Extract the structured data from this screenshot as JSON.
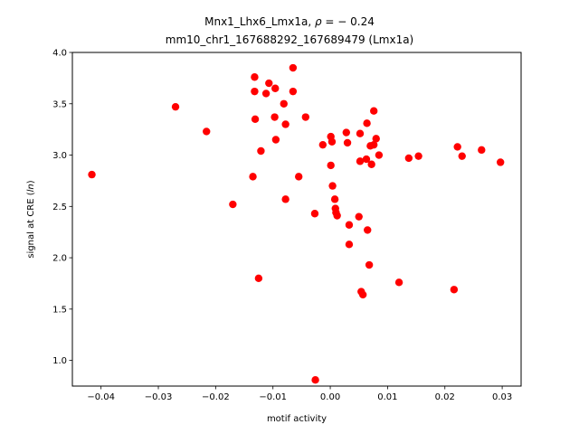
{
  "chart_data": {
    "type": "scatter",
    "title_line1_prefix": "Mnx1_Lhx6_Lmx1a, ",
    "title_line1_rho": "ρ",
    "title_line1_suffix": " = − 0.24",
    "title_line2": "mm10_chr1_167688292_167689479 (Lmx1a)",
    "xlabel": "motif activity",
    "ylabel_prefix": "signal at CRE (",
    "ylabel_italic": "ln",
    "ylabel_suffix": ")",
    "xlim": [
      -0.045,
      0.0333
    ],
    "ylim": [
      0.75,
      4.0
    ],
    "x_ticks": [
      -0.04,
      -0.03,
      -0.02,
      -0.01,
      0.0,
      0.01,
      0.02,
      0.03
    ],
    "x_tick_labels": [
      "−0.04",
      "−0.03",
      "−0.02",
      "−0.01",
      "0.00",
      "0.01",
      "0.02",
      "0.03"
    ],
    "y_ticks": [
      1.0,
      1.5,
      2.0,
      2.5,
      3.0,
      3.5,
      4.0
    ],
    "y_tick_labels": [
      "1.0",
      "1.5",
      "2.0",
      "2.5",
      "3.0",
      "3.5",
      "4.0"
    ],
    "marker_color": "#ff0000",
    "grid": false,
    "points": [
      {
        "x": -0.0416,
        "y": 2.81
      },
      {
        "x": -0.027,
        "y": 3.47
      },
      {
        "x": -0.0216,
        "y": 3.23
      },
      {
        "x": -0.017,
        "y": 2.52
      },
      {
        "x": -0.0135,
        "y": 2.79
      },
      {
        "x": -0.0132,
        "y": 3.76
      },
      {
        "x": -0.0132,
        "y": 3.62
      },
      {
        "x": -0.0131,
        "y": 3.35
      },
      {
        "x": -0.0125,
        "y": 1.8
      },
      {
        "x": -0.0121,
        "y": 3.04
      },
      {
        "x": -0.0112,
        "y": 3.6
      },
      {
        "x": -0.0107,
        "y": 3.7
      },
      {
        "x": -0.0096,
        "y": 3.65
      },
      {
        "x": -0.0097,
        "y": 3.37
      },
      {
        "x": -0.0095,
        "y": 3.15
      },
      {
        "x": -0.0081,
        "y": 3.5
      },
      {
        "x": -0.0078,
        "y": 3.3
      },
      {
        "x": -0.0078,
        "y": 2.57
      },
      {
        "x": -0.0065,
        "y": 3.85
      },
      {
        "x": -0.0065,
        "y": 3.62
      },
      {
        "x": -0.0055,
        "y": 2.79
      },
      {
        "x": -0.0043,
        "y": 3.37
      },
      {
        "x": -0.0027,
        "y": 2.43
      },
      {
        "x": -0.0026,
        "y": 0.81
      },
      {
        "x": -0.0013,
        "y": 3.1
      },
      {
        "x": 0.0001,
        "y": 3.18
      },
      {
        "x": 0.0001,
        "y": 2.9
      },
      {
        "x": 0.0003,
        "y": 3.13
      },
      {
        "x": 0.0004,
        "y": 2.7
      },
      {
        "x": 0.0008,
        "y": 2.57
      },
      {
        "x": 0.0009,
        "y": 2.48
      },
      {
        "x": 0.001,
        "y": 2.44
      },
      {
        "x": 0.0012,
        "y": 2.41
      },
      {
        "x": 0.0028,
        "y": 3.22
      },
      {
        "x": 0.003,
        "y": 3.12
      },
      {
        "x": 0.0033,
        "y": 2.32
      },
      {
        "x": 0.0033,
        "y": 2.13
      },
      {
        "x": 0.005,
        "y": 2.4
      },
      {
        "x": 0.0052,
        "y": 3.21
      },
      {
        "x": 0.0052,
        "y": 2.94
      },
      {
        "x": 0.0054,
        "y": 1.67
      },
      {
        "x": 0.0057,
        "y": 1.64
      },
      {
        "x": 0.0063,
        "y": 2.96
      },
      {
        "x": 0.0064,
        "y": 3.31
      },
      {
        "x": 0.0065,
        "y": 2.27
      },
      {
        "x": 0.0068,
        "y": 1.93
      },
      {
        "x": 0.007,
        "y": 3.09
      },
      {
        "x": 0.0072,
        "y": 2.91
      },
      {
        "x": 0.0076,
        "y": 3.43
      },
      {
        "x": 0.0076,
        "y": 3.1
      },
      {
        "x": 0.008,
        "y": 3.16
      },
      {
        "x": 0.0085,
        "y": 3.0
      },
      {
        "x": 0.012,
        "y": 1.76
      },
      {
        "x": 0.0137,
        "y": 2.97
      },
      {
        "x": 0.0154,
        "y": 2.99
      },
      {
        "x": 0.0216,
        "y": 1.69
      },
      {
        "x": 0.0222,
        "y": 3.08
      },
      {
        "x": 0.023,
        "y": 2.99
      },
      {
        "x": 0.0264,
        "y": 3.05
      },
      {
        "x": 0.0297,
        "y": 2.93
      }
    ]
  }
}
